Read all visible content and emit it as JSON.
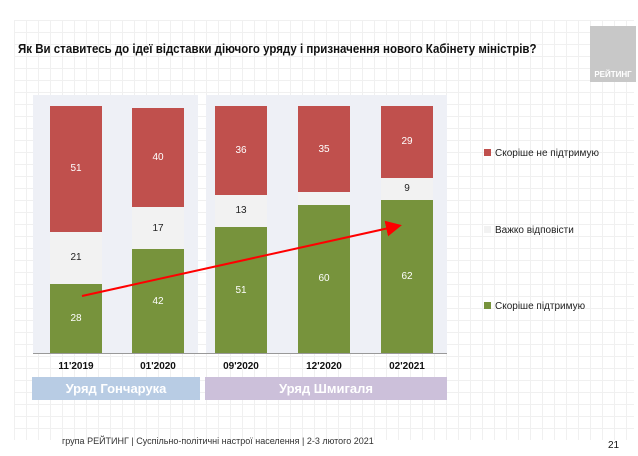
{
  "title": "Як Ви ставитесь до ідеї відставки діючого уряду і призначення нового Кабінету міністрів?",
  "logo_text": "РЕЙТИНГ",
  "footer": "група РЕЙТИНГ | Суспільно-політичні настрої населення  | 2-3 лютого 2021",
  "page_number": "21",
  "groups": [
    {
      "label": "Уряд Гончарука",
      "color": "#b8cce4"
    },
    {
      "label": "Уряд Шмигаля",
      "color": "#ccc0da"
    }
  ],
  "chart_data": {
    "type": "bar",
    "stacked": true,
    "categories": [
      "11'2019",
      "01'2020",
      "09'2020",
      "12'2020",
      "02'2021"
    ],
    "series": [
      {
        "name": "Скоріше  підтримую",
        "color": "#77933c",
        "values": [
          28,
          42,
          51,
          60,
          62
        ]
      },
      {
        "name": "Важко відповісти",
        "color": "#f2f2f2",
        "values": [
          21,
          17,
          13,
          5,
          9
        ]
      },
      {
        "name": "Скоріше не підтримую",
        "color": "#c0504d",
        "values": [
          51,
          40,
          36,
          35,
          29
        ]
      }
    ],
    "trend_arrow": {
      "color": "#ff0000",
      "from": "11'2019",
      "to": "02'2021"
    },
    "legend": "right"
  }
}
